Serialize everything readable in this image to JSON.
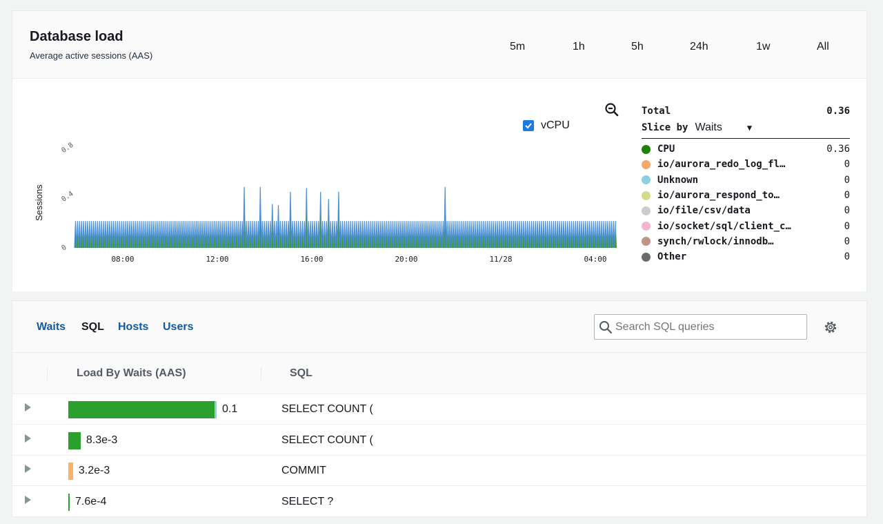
{
  "header": {
    "title": "Database load",
    "subtitle": "Average active sessions (AAS)",
    "ranges": [
      "5m",
      "1h",
      "5h",
      "24h",
      "1w",
      "All"
    ]
  },
  "chart": {
    "vcpu_label": "vCPU",
    "vcpu_checked": true,
    "zoom_icon": "zoom-out-icon"
  },
  "chart_data": {
    "type": "area",
    "ylabel": "Sessions",
    "y_ticks": [
      "0",
      "0.4",
      "0.8"
    ],
    "ylim": [
      0,
      0.9
    ],
    "x_ticks": [
      "08:00",
      "12:00",
      "16:00",
      "20:00",
      "11/28",
      "04:00"
    ],
    "series": [
      {
        "name": "CPU",
        "color": "#1d8102",
        "baseline_peak": 0.22,
        "spikes": [
          [
            13.1,
            0.5
          ],
          [
            13.8,
            0.5
          ],
          [
            14.3,
            0.36
          ],
          [
            14.6,
            0.35
          ],
          [
            15.1,
            0.46
          ],
          [
            15.8,
            0.49
          ],
          [
            16.4,
            0.46
          ],
          [
            16.7,
            0.4
          ],
          [
            17.1,
            0.46
          ],
          [
            21.6,
            0.5
          ]
        ]
      },
      {
        "name": "vCPU",
        "color": "#4a90d9"
      }
    ]
  },
  "legend": {
    "total_label": "Total",
    "total_value": "0.36",
    "slice_label": "Slice by",
    "slice_value": "Waits",
    "items": [
      {
        "name": "CPU",
        "value": "0.36",
        "color": "#1d8102"
      },
      {
        "name": "io/aurora_redo_log_fl…",
        "value": "0",
        "color": "#f5a86b"
      },
      {
        "name": "Unknown",
        "value": "0",
        "color": "#8ad0e0"
      },
      {
        "name": "io/aurora_respond_to…",
        "value": "0",
        "color": "#d6d98c"
      },
      {
        "name": "io/file/csv/data",
        "value": "0",
        "color": "#cccccc"
      },
      {
        "name": "io/socket/sql/client_c…",
        "value": "0",
        "color": "#f3b6cf"
      },
      {
        "name": "synch/rwlock/innodb…",
        "value": "0",
        "color": "#c09388"
      },
      {
        "name": "Other",
        "value": "0",
        "color": "#6b6b6b"
      }
    ]
  },
  "tabs": [
    "Waits",
    "SQL",
    "Hosts",
    "Users"
  ],
  "active_tab": "SQL",
  "search": {
    "placeholder": "Search SQL queries"
  },
  "table": {
    "headers": [
      "Load By Waits (AAS)",
      "SQL"
    ],
    "rows": [
      {
        "load": "0.1",
        "sql": "SELECT COUNT (",
        "fraction": 1.0,
        "color": "#2ca02c"
      },
      {
        "load": "8.3e-3",
        "sql": "SELECT COUNT (",
        "fraction": 0.083,
        "color": "#2ca02c"
      },
      {
        "load": "3.2e-3",
        "sql": "COMMIT",
        "fraction": 0.032,
        "color": "#f7b26d"
      },
      {
        "load": "7.6e-4",
        "sql": "SELECT ?",
        "fraction": 0.0076,
        "color": "#2ca02c"
      }
    ]
  }
}
